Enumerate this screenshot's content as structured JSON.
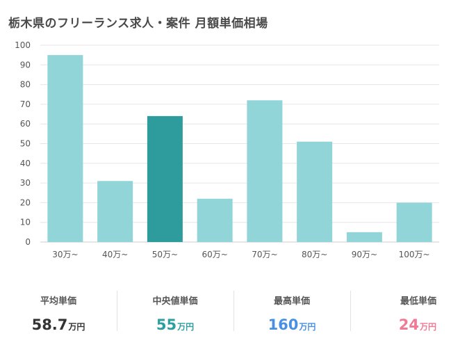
{
  "title": "栃木県のフリーランス求人・案件 月額単価相場",
  "chart_data": {
    "type": "bar",
    "categories": [
      "30万~",
      "40万~",
      "50万~",
      "60万~",
      "70万~",
      "80万~",
      "90万~",
      "100万~"
    ],
    "values": [
      95,
      31,
      64,
      22,
      72,
      51,
      5,
      20
    ],
    "highlight_index": 2,
    "ylim": [
      0,
      100
    ],
    "yticks": [
      0,
      10,
      20,
      30,
      40,
      50,
      60,
      70,
      80,
      90,
      100
    ],
    "grid": true,
    "colors": {
      "bar": "#91d5d9",
      "highlight": "#2e9b9d",
      "grid": "#e6e6e6",
      "axis": "#cccccc"
    }
  },
  "stats": {
    "average": {
      "label": "平均単価",
      "value": "58.7",
      "unit": "万円"
    },
    "median": {
      "label": "中央値単価",
      "value": "55",
      "unit": "万円"
    },
    "max": {
      "label": "最高単価",
      "value": "160",
      "unit": "万円"
    },
    "min": {
      "label": "最低単価",
      "value": "24",
      "unit": "万円"
    }
  }
}
